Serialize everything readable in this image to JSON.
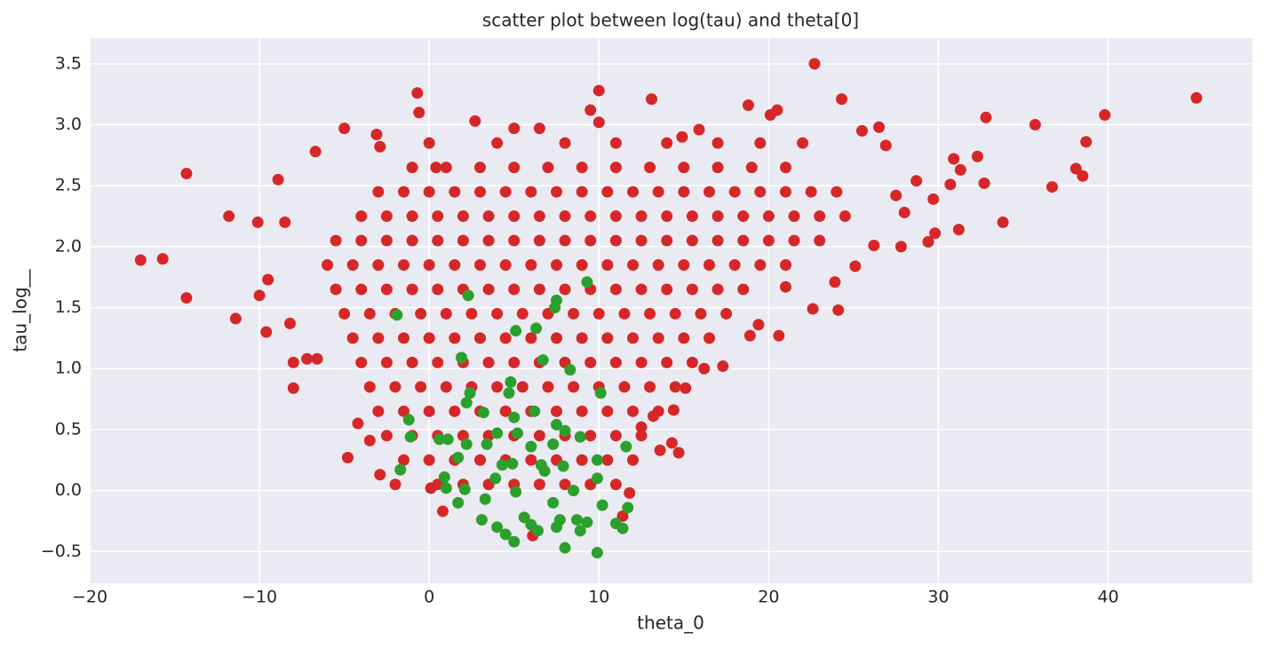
{
  "chart_data": {
    "type": "scatter",
    "title": "scatter plot between log(tau) and theta[0]",
    "x_label": "theta_0",
    "y_label": "tau_log__",
    "xlim": [
      -20,
      48.5
    ],
    "ylim": [
      -0.76,
      3.71
    ],
    "xticks": [
      {
        "value": -20,
        "label": "−20"
      },
      {
        "value": -10,
        "label": "−10"
      },
      0,
      10,
      20,
      30,
      40
    ],
    "yticks": [
      {
        "value": -0.5,
        "label": "−0.5"
      },
      {
        "value": 0,
        "label": "0.0"
      },
      0.5,
      {
        "value": 1,
        "label": "1.0"
      },
      1.5,
      {
        "value": 2,
        "label": "2.0"
      },
      2.5,
      {
        "value": 3,
        "label": "3.0"
      },
      3.5
    ],
    "grid": true,
    "series": [
      {
        "color": "#d62728",
        "x": [
          -17,
          -15.7,
          -14.3,
          -14.3,
          -11.8,
          -11.4,
          -10.1,
          -10,
          -9.6,
          -9.5,
          -8.9,
          -8.5,
          -8.2,
          -8,
          -8,
          -7.2,
          -6.7,
          -6.6,
          -5,
          -4.8,
          -3.1,
          -2.9,
          -2,
          -0.7,
          -0.6,
          0.4,
          2.7,
          5,
          6.5,
          9.5,
          10,
          10,
          13.1,
          14.9,
          15.9,
          18.8,
          20.1,
          20.5,
          22.7,
          24.3,
          25.5,
          26.5,
          20.6,
          18.9,
          22.6,
          24.1,
          23.9,
          25.1,
          26.2,
          27.8,
          29.4,
          29.8,
          31.2,
          30.9,
          31.3,
          32.3,
          32.7,
          32.8,
          33.8,
          35.7,
          36.7,
          38.1,
          38.5,
          38.7,
          39.8,
          45.2,
          14.7,
          14.3,
          13.6,
          14.4,
          13.2,
          12.5,
          11.8,
          11.4,
          6.1,
          0.8,
          0.1,
          -2.9,
          -3.5,
          -4.2,
          17.3,
          16.2,
          15.1,
          19.4,
          21,
          27.5,
          28,
          26.9,
          28.7,
          29.7,
          30.7,
          0.5,
          2,
          3.5,
          5,
          6.5,
          8,
          9.5,
          11,
          -1.5,
          0,
          1.5,
          3,
          4.5,
          6,
          7.5,
          9,
          10.5,
          12,
          -2.5,
          -1,
          0.5,
          2,
          3.5,
          5,
          6.5,
          8,
          9.5,
          11,
          12.5,
          -3,
          -1.5,
          0,
          1.5,
          3,
          4.5,
          6,
          7.5,
          9,
          10.5,
          12,
          13.5,
          -3.5,
          -2,
          -0.5,
          1,
          2.5,
          4,
          5.5,
          7,
          8.5,
          10,
          11.5,
          13,
          14.5,
          -4,
          -2.5,
          -1,
          0.5,
          2,
          3.5,
          5,
          6.5,
          8,
          9.5,
          11,
          12.5,
          14,
          15.5,
          -4.5,
          -3,
          -1.5,
          0,
          1.5,
          3,
          4.5,
          6,
          7.5,
          9,
          10.5,
          12,
          13.5,
          15,
          16.5,
          -5,
          -3.5,
          -2,
          -0.5,
          1,
          2.5,
          4,
          5.5,
          7,
          8.5,
          10,
          11.5,
          13,
          14.5,
          16,
          17.5,
          -5.5,
          -4,
          -2.5,
          -1,
          0.5,
          2,
          3.5,
          5,
          6.5,
          8,
          9.5,
          11,
          12.5,
          14,
          15.5,
          17,
          18.5,
          -6,
          -4.5,
          -3,
          -1.5,
          0,
          1.5,
          3,
          4.5,
          6,
          7.5,
          9,
          10.5,
          12,
          13.5,
          15,
          16.5,
          18,
          19.5,
          21,
          -5.5,
          -4,
          -2.5,
          -1,
          0.5,
          2,
          3.5,
          5,
          6.5,
          8,
          9.5,
          11,
          12.5,
          14,
          15.5,
          17,
          18.5,
          20,
          21.5,
          23,
          -4,
          -2.5,
          -1,
          0.5,
          2,
          3.5,
          5,
          6.5,
          8,
          9.5,
          11,
          12.5,
          14,
          15.5,
          17,
          18.5,
          20,
          21.5,
          23,
          24.5,
          -3,
          -1.5,
          0,
          1.5,
          3,
          4.5,
          6,
          7.5,
          9,
          10.5,
          12,
          13.5,
          15,
          16.5,
          18,
          19.5,
          21,
          22.5,
          24,
          -1,
          1,
          3,
          5,
          7,
          9,
          11,
          13,
          15,
          17,
          19,
          21,
          0,
          4,
          8,
          11,
          14,
          17,
          19.5,
          22
        ],
        "values": [
          1.89,
          1.9,
          2.6,
          1.58,
          2.25,
          1.41,
          2.2,
          1.6,
          1.3,
          1.73,
          2.55,
          2.2,
          1.37,
          1.05,
          0.84,
          1.08,
          2.78,
          1.08,
          2.97,
          0.27,
          2.92,
          2.82,
          0.05,
          3.26,
          3.1,
          2.65,
          3.03,
          2.97,
          2.97,
          3.12,
          3.28,
          3.02,
          3.21,
          2.9,
          2.96,
          3.16,
          3.08,
          3.12,
          3.5,
          3.21,
          2.95,
          2.98,
          1.27,
          1.27,
          1.49,
          1.48,
          1.71,
          1.84,
          2.01,
          2.0,
          2.04,
          2.11,
          2.14,
          2.72,
          2.63,
          2.74,
          2.52,
          3.06,
          2.2,
          3.0,
          2.49,
          2.64,
          2.58,
          2.86,
          3.08,
          3.22,
          0.31,
          0.39,
          0.33,
          0.66,
          0.61,
          0.52,
          -0.02,
          -0.21,
          -0.37,
          -0.17,
          0.02,
          0.13,
          0.41,
          0.55,
          1.02,
          1.0,
          0.84,
          1.36,
          1.67,
          2.42,
          2.28,
          2.83,
          2.54,
          2.39,
          2.51,
          0.05,
          0.05,
          0.05,
          0.05,
          0.05,
          0.05,
          0.05,
          0.05,
          0.25,
          0.25,
          0.25,
          0.25,
          0.25,
          0.25,
          0.25,
          0.25,
          0.25,
          0.25,
          0.45,
          0.45,
          0.45,
          0.45,
          0.45,
          0.45,
          0.45,
          0.45,
          0.45,
          0.45,
          0.45,
          0.65,
          0.65,
          0.65,
          0.65,
          0.65,
          0.65,
          0.65,
          0.65,
          0.65,
          0.65,
          0.65,
          0.65,
          0.85,
          0.85,
          0.85,
          0.85,
          0.85,
          0.85,
          0.85,
          0.85,
          0.85,
          0.85,
          0.85,
          0.85,
          0.85,
          1.05,
          1.05,
          1.05,
          1.05,
          1.05,
          1.05,
          1.05,
          1.05,
          1.05,
          1.05,
          1.05,
          1.05,
          1.05,
          1.05,
          1.25,
          1.25,
          1.25,
          1.25,
          1.25,
          1.25,
          1.25,
          1.25,
          1.25,
          1.25,
          1.25,
          1.25,
          1.25,
          1.25,
          1.25,
          1.45,
          1.45,
          1.45,
          1.45,
          1.45,
          1.45,
          1.45,
          1.45,
          1.45,
          1.45,
          1.45,
          1.45,
          1.45,
          1.45,
          1.45,
          1.45,
          1.65,
          1.65,
          1.65,
          1.65,
          1.65,
          1.65,
          1.65,
          1.65,
          1.65,
          1.65,
          1.65,
          1.65,
          1.65,
          1.65,
          1.65,
          1.65,
          1.65,
          1.85,
          1.85,
          1.85,
          1.85,
          1.85,
          1.85,
          1.85,
          1.85,
          1.85,
          1.85,
          1.85,
          1.85,
          1.85,
          1.85,
          1.85,
          1.85,
          1.85,
          1.85,
          1.85,
          2.05,
          2.05,
          2.05,
          2.05,
          2.05,
          2.05,
          2.05,
          2.05,
          2.05,
          2.05,
          2.05,
          2.05,
          2.05,
          2.05,
          2.05,
          2.05,
          2.05,
          2.05,
          2.05,
          2.05,
          2.25,
          2.25,
          2.25,
          2.25,
          2.25,
          2.25,
          2.25,
          2.25,
          2.25,
          2.25,
          2.25,
          2.25,
          2.25,
          2.25,
          2.25,
          2.25,
          2.25,
          2.25,
          2.25,
          2.25,
          2.45,
          2.45,
          2.45,
          2.45,
          2.45,
          2.45,
          2.45,
          2.45,
          2.45,
          2.45,
          2.45,
          2.45,
          2.45,
          2.45,
          2.45,
          2.45,
          2.45,
          2.45,
          2.45,
          2.65,
          2.65,
          2.65,
          2.65,
          2.65,
          2.65,
          2.65,
          2.65,
          2.65,
          2.65,
          2.65,
          2.65,
          2.85,
          2.85,
          2.85,
          2.85,
          2.85,
          2.85,
          2.85,
          2.85
        ]
      },
      {
        "color": "#2ca02c",
        "x": [
          -1.9,
          2.3,
          7.5,
          7.4,
          9.3,
          5.1,
          6.3,
          1.9,
          6.7,
          8.3,
          4.8,
          4.7,
          2.4,
          2.2,
          10.1,
          3.2,
          5.0,
          6.2,
          -1.2,
          -1.1,
          7.5,
          8.0,
          8.9,
          4.0,
          5.2,
          0.6,
          1.1,
          3.4,
          2.2,
          6.0,
          7.3,
          11.6,
          9.9,
          7.9,
          1.7,
          -1.7,
          4.3,
          4.9,
          6.6,
          0.9,
          1.0,
          2.1,
          3.9,
          6.8,
          9.9,
          8.5,
          5.1,
          1.7,
          3.3,
          7.3,
          3.1,
          4.0,
          5.6,
          6.0,
          6.4,
          7.7,
          8.7,
          9.3,
          10.2,
          11.7,
          11.0,
          11.4,
          4.5,
          5.0,
          8.0,
          9.9,
          8.9,
          7.5
        ],
        "values": [
          1.44,
          1.6,
          1.56,
          1.5,
          1.71,
          1.31,
          1.33,
          1.09,
          1.07,
          0.99,
          0.89,
          0.8,
          0.8,
          0.72,
          0.8,
          0.64,
          0.6,
          0.65,
          0.58,
          0.44,
          0.54,
          0.49,
          0.44,
          0.47,
          0.47,
          0.42,
          0.42,
          0.38,
          0.38,
          0.36,
          0.38,
          0.36,
          0.25,
          0.2,
          0.27,
          0.17,
          0.21,
          0.22,
          0.21,
          0.11,
          0.02,
          0.01,
          0.1,
          0.16,
          0.1,
          0.0,
          -0.01,
          -0.1,
          -0.07,
          -0.1,
          -0.24,
          -0.3,
          -0.22,
          -0.28,
          -0.33,
          -0.24,
          -0.24,
          -0.26,
          -0.12,
          -0.14,
          -0.27,
          -0.31,
          -0.36,
          -0.42,
          -0.47,
          -0.51,
          -0.33,
          -0.3
        ]
      }
    ]
  }
}
